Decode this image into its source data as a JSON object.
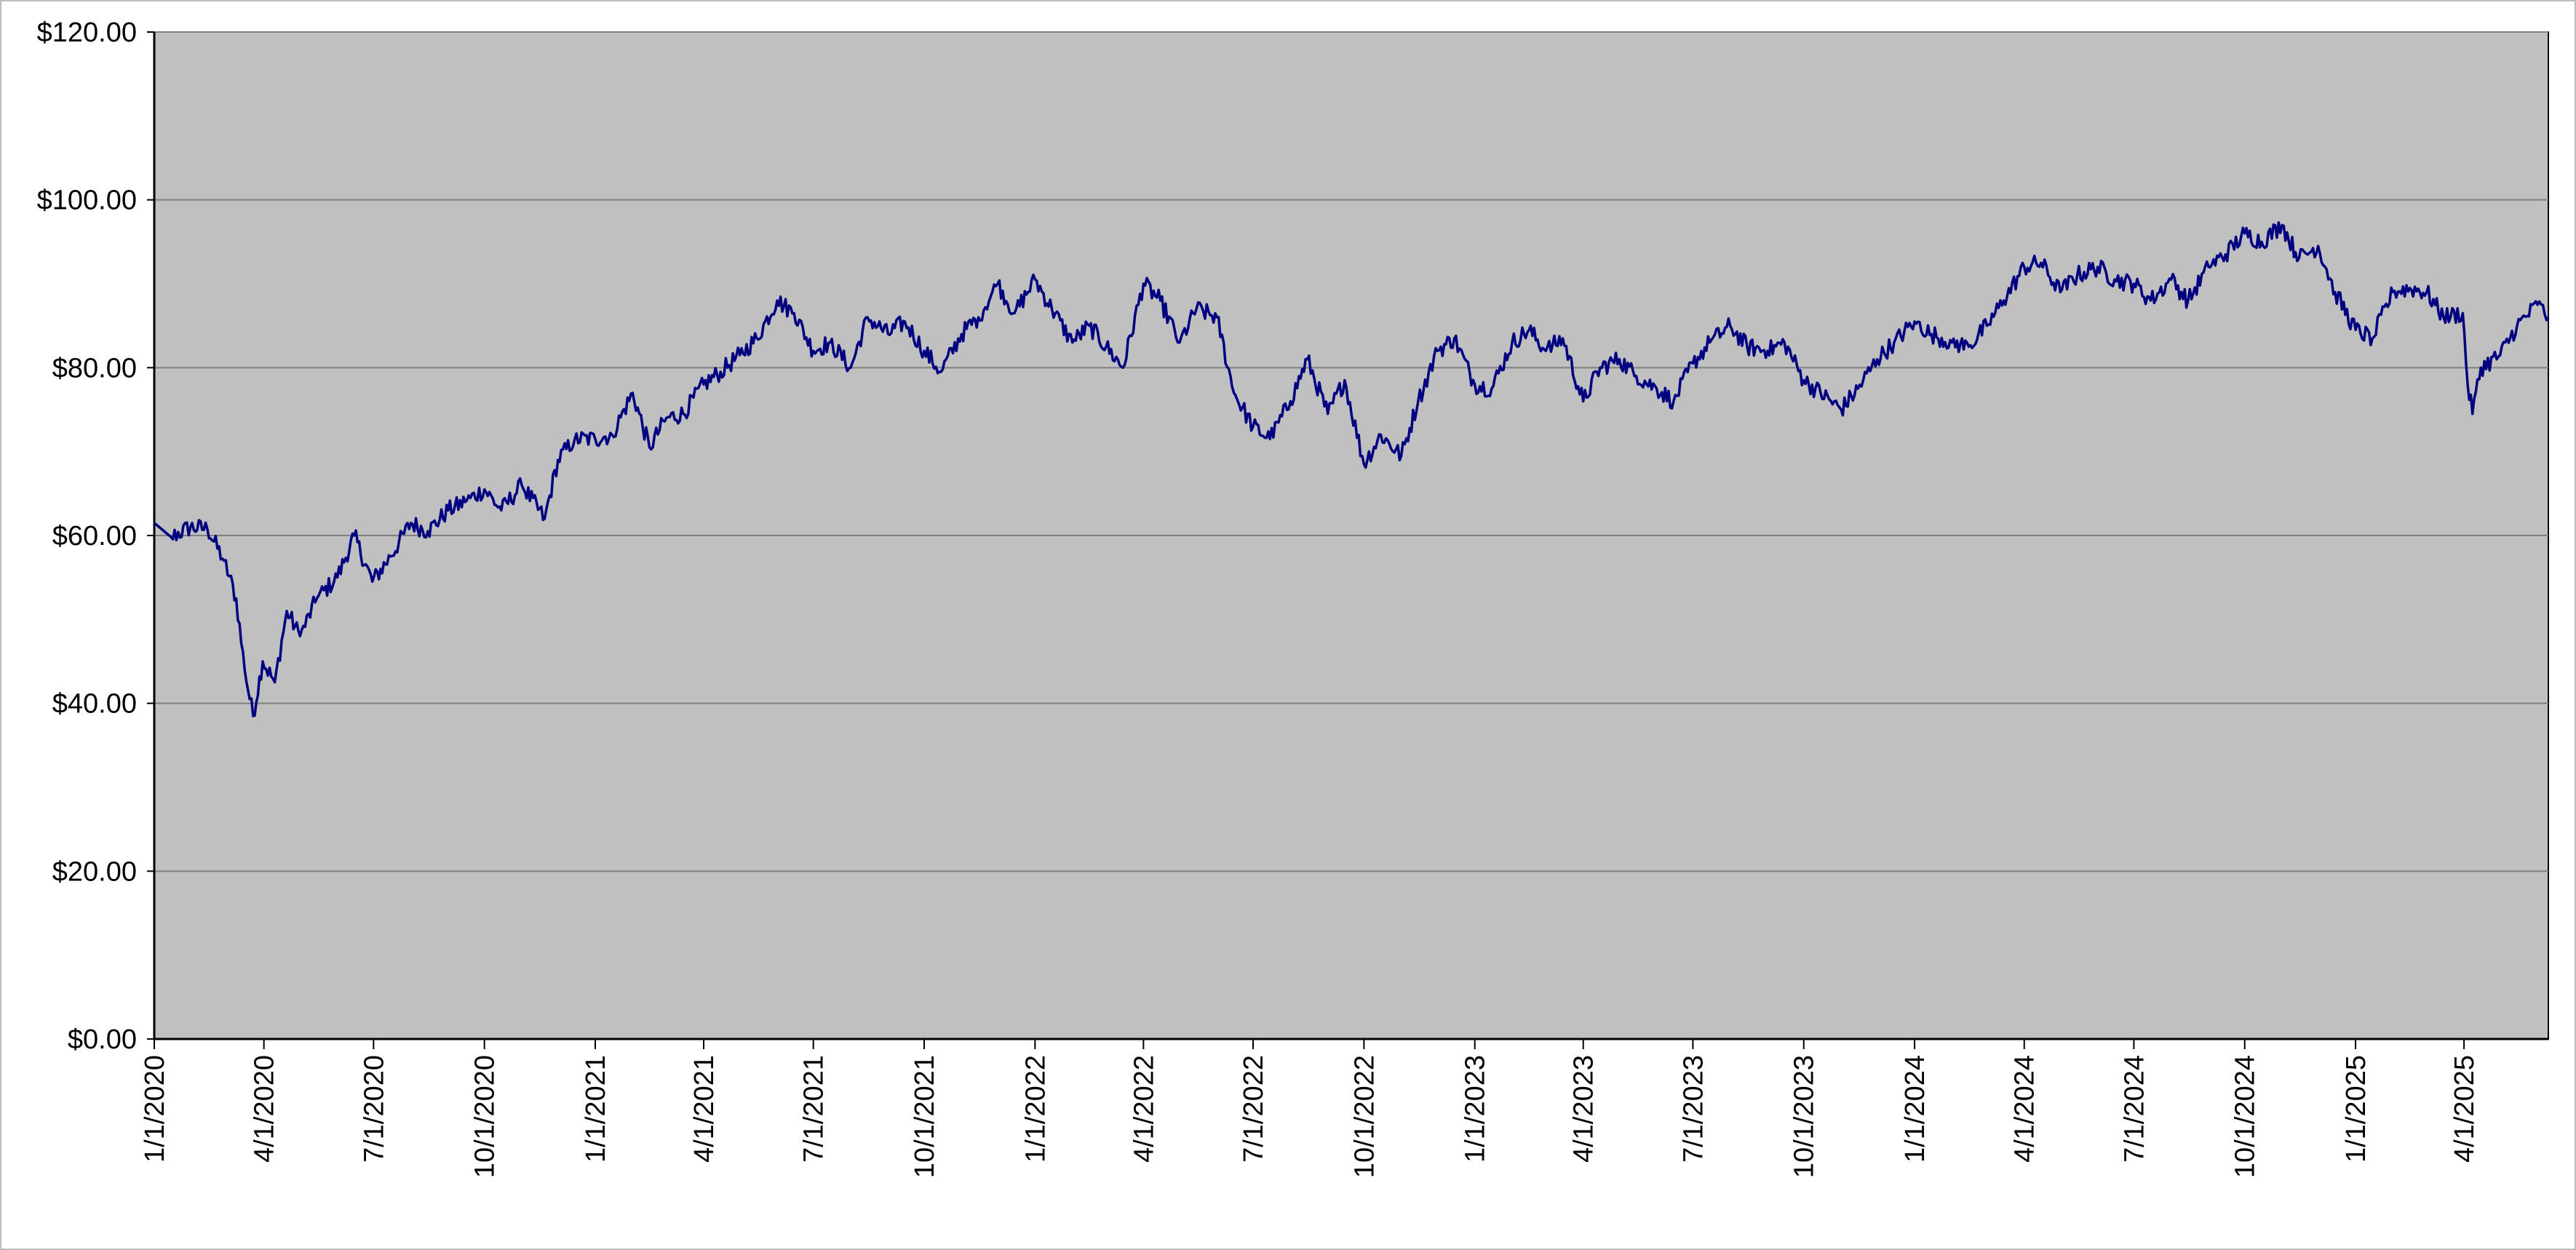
{
  "colors": {
    "plot_background": "#c0c0c0",
    "line": "#000080",
    "gridline": "#808080",
    "axis": "#000000"
  },
  "chart_data": {
    "type": "line",
    "title": "",
    "xlabel": "",
    "ylabel": "",
    "grid": true,
    "legend": "none",
    "x_range": [
      "2020-01-01",
      "2025-06-10"
    ],
    "ylim": [
      0,
      120
    ],
    "y_ticks": [
      0,
      20,
      40,
      60,
      80,
      100,
      120
    ],
    "y_tick_labels": [
      "$0.00",
      "$20.00",
      "$40.00",
      "$60.00",
      "$80.00",
      "$100.00",
      "$120.00"
    ],
    "x_tick_labels": [
      "1/1/2020",
      "4/1/2020",
      "7/1/2020",
      "10/1/2020",
      "1/1/2021",
      "4/1/2021",
      "7/1/2021",
      "10/1/2021",
      "1/1/2022",
      "4/1/2022",
      "7/1/2022",
      "10/1/2022",
      "1/1/2023",
      "4/1/2023",
      "7/1/2023",
      "10/1/2023",
      "1/1/2024",
      "4/1/2024",
      "7/1/2024",
      "10/1/2024",
      "1/1/2025",
      "4/1/2025"
    ],
    "series": [
      {
        "points": [
          [
            "2020-01-01",
            61.5
          ],
          [
            "2020-01-15",
            59.8
          ],
          [
            "2020-01-31",
            61.0
          ],
          [
            "2020-02-14",
            60.8
          ],
          [
            "2020-02-28",
            57.0
          ],
          [
            "2020-03-09",
            52.5
          ],
          [
            "2020-03-16",
            44.0
          ],
          [
            "2020-03-23",
            38.5
          ],
          [
            "2020-03-31",
            45.0
          ],
          [
            "2020-04-10",
            42.5
          ],
          [
            "2020-04-20",
            51.0
          ],
          [
            "2020-05-01",
            48.0
          ],
          [
            "2020-05-15",
            52.5
          ],
          [
            "2020-06-01",
            55.0
          ],
          [
            "2020-06-15",
            60.0
          ],
          [
            "2020-06-30",
            54.5
          ],
          [
            "2020-07-15",
            57.5
          ],
          [
            "2020-08-01",
            61.5
          ],
          [
            "2020-08-15",
            60.5
          ],
          [
            "2020-09-01",
            63.0
          ],
          [
            "2020-09-15",
            64.0
          ],
          [
            "2020-10-01",
            65.5
          ],
          [
            "2020-10-15",
            63.0
          ],
          [
            "2020-11-01",
            66.0
          ],
          [
            "2020-11-20",
            62.0
          ],
          [
            "2020-12-01",
            69.0
          ],
          [
            "2020-12-15",
            71.5
          ],
          [
            "2021-01-01",
            71.5
          ],
          [
            "2021-01-15",
            72.0
          ],
          [
            "2021-02-01",
            77.0
          ],
          [
            "2021-02-15",
            70.5
          ],
          [
            "2021-03-01",
            74.0
          ],
          [
            "2021-03-15",
            74.5
          ],
          [
            "2021-04-01",
            78.0
          ],
          [
            "2021-04-15",
            79.5
          ],
          [
            "2021-05-01",
            81.5
          ],
          [
            "2021-05-15",
            83.5
          ],
          [
            "2021-06-01",
            88.0
          ],
          [
            "2021-06-15",
            86.5
          ],
          [
            "2021-07-01",
            82.0
          ],
          [
            "2021-07-15",
            83.0
          ],
          [
            "2021-08-01",
            80.0
          ],
          [
            "2021-08-15",
            86.0
          ],
          [
            "2021-09-01",
            84.0
          ],
          [
            "2021-09-15",
            85.5
          ],
          [
            "2021-10-01",
            82.0
          ],
          [
            "2021-10-15",
            79.5
          ],
          [
            "2021-11-01",
            84.0
          ],
          [
            "2021-11-15",
            86.0
          ],
          [
            "2021-12-01",
            90.0
          ],
          [
            "2021-12-15",
            86.5
          ],
          [
            "2022-01-01",
            90.5
          ],
          [
            "2022-01-15",
            87.0
          ],
          [
            "2022-02-01",
            83.0
          ],
          [
            "2022-02-15",
            85.0
          ],
          [
            "2022-03-01",
            82.5
          ],
          [
            "2022-03-15",
            80.0
          ],
          [
            "2022-04-01",
            90.0
          ],
          [
            "2022-04-15",
            88.0
          ],
          [
            "2022-05-01",
            83.0
          ],
          [
            "2022-05-15",
            87.0
          ],
          [
            "2022-06-01",
            86.0
          ],
          [
            "2022-06-15",
            77.0
          ],
          [
            "2022-07-01",
            73.0
          ],
          [
            "2022-07-15",
            71.5
          ],
          [
            "2022-08-01",
            76.0
          ],
          [
            "2022-08-15",
            81.0
          ],
          [
            "2022-09-01",
            74.5
          ],
          [
            "2022-09-15",
            78.5
          ],
          [
            "2022-10-01",
            68.5
          ],
          [
            "2022-10-15",
            72.0
          ],
          [
            "2022-11-01",
            69.5
          ],
          [
            "2022-11-15",
            76.0
          ],
          [
            "2022-12-01",
            82.0
          ],
          [
            "2022-12-15",
            83.5
          ],
          [
            "2023-01-01",
            78.0
          ],
          [
            "2023-01-15",
            77.5
          ],
          [
            "2023-02-01",
            83.0
          ],
          [
            "2023-02-15",
            84.5
          ],
          [
            "2023-03-01",
            82.0
          ],
          [
            "2023-03-15",
            83.5
          ],
          [
            "2023-04-01",
            76.0
          ],
          [
            "2023-04-15",
            80.0
          ],
          [
            "2023-05-01",
            81.0
          ],
          [
            "2023-05-15",
            79.0
          ],
          [
            "2023-06-01",
            77.5
          ],
          [
            "2023-06-15",
            76.0
          ],
          [
            "2023-07-01",
            80.5
          ],
          [
            "2023-07-15",
            83.0
          ],
          [
            "2023-08-01",
            85.0
          ],
          [
            "2023-08-15",
            82.5
          ],
          [
            "2023-09-01",
            82.0
          ],
          [
            "2023-09-15",
            83.0
          ],
          [
            "2023-10-01",
            78.5
          ],
          [
            "2023-10-15",
            77.0
          ],
          [
            "2023-11-01",
            75.0
          ],
          [
            "2023-11-15",
            77.5
          ],
          [
            "2023-12-01",
            81.0
          ],
          [
            "2023-12-15",
            83.0
          ],
          [
            "2024-01-01",
            85.5
          ],
          [
            "2024-01-15",
            84.0
          ],
          [
            "2024-02-01",
            83.0
          ],
          [
            "2024-02-15",
            82.5
          ],
          [
            "2024-03-01",
            85.0
          ],
          [
            "2024-03-15",
            88.0
          ],
          [
            "2024-04-01",
            92.0
          ],
          [
            "2024-04-15",
            92.5
          ],
          [
            "2024-05-01",
            89.0
          ],
          [
            "2024-05-15",
            91.0
          ],
          [
            "2024-06-01",
            92.0
          ],
          [
            "2024-06-15",
            90.5
          ],
          [
            "2024-07-01",
            90.0
          ],
          [
            "2024-07-15",
            88.0
          ],
          [
            "2024-08-01",
            90.5
          ],
          [
            "2024-08-15",
            88.0
          ],
          [
            "2024-09-01",
            92.0
          ],
          [
            "2024-09-15",
            93.5
          ],
          [
            "2024-10-01",
            96.0
          ],
          [
            "2024-10-15",
            95.0
          ],
          [
            "2024-11-01",
            97.0
          ],
          [
            "2024-11-15",
            93.0
          ],
          [
            "2024-12-01",
            94.5
          ],
          [
            "2024-12-15",
            89.0
          ],
          [
            "2025-01-01",
            84.5
          ],
          [
            "2025-01-15",
            83.5
          ],
          [
            "2025-02-01",
            89.0
          ],
          [
            "2025-02-15",
            89.5
          ],
          [
            "2025-03-01",
            89.0
          ],
          [
            "2025-03-15",
            86.0
          ],
          [
            "2025-03-31",
            86.5
          ],
          [
            "2025-04-04",
            78.0
          ],
          [
            "2025-04-08",
            74.5
          ],
          [
            "2025-04-15",
            80.0
          ],
          [
            "2025-05-01",
            81.5
          ],
          [
            "2025-05-15",
            85.0
          ],
          [
            "2025-06-01",
            87.5
          ],
          [
            "2025-06-10",
            86.0
          ]
        ]
      }
    ]
  }
}
